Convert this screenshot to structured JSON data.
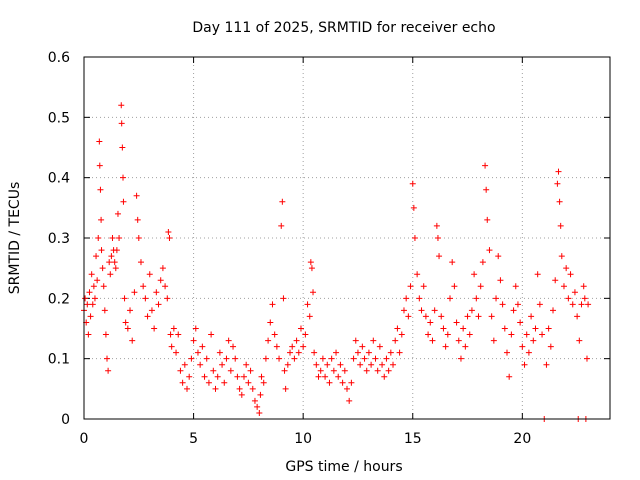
{
  "chart_data": {
    "type": "scatter",
    "title": "Day 111 of 2025, SRMTID for receiver echo",
    "xlabel": "GPS time / hours",
    "ylabel": "SRMTID / TECUs",
    "xlim": [
      0,
      24
    ],
    "ylim": [
      0,
      0.6
    ],
    "xticks": [
      "0",
      "5",
      "10",
      "15",
      "20"
    ],
    "yticks": [
      "0",
      "0.1",
      "0.2",
      "0.3",
      "0.4",
      "0.5",
      "0.6"
    ],
    "grid": true,
    "marker": "+",
    "colors": {
      "points": "#ff0000",
      "grid": "#a0a0a0",
      "axes": "#000000"
    },
    "series": [
      {
        "name": "SRMTID",
        "points": [
          [
            0.0,
            0.18
          ],
          [
            0.05,
            0.2
          ],
          [
            0.1,
            0.16
          ],
          [
            0.15,
            0.19
          ],
          [
            0.2,
            0.14
          ],
          [
            0.25,
            0.21
          ],
          [
            0.3,
            0.17
          ],
          [
            0.35,
            0.24
          ],
          [
            0.4,
            0.19
          ],
          [
            0.45,
            0.22
          ],
          [
            0.5,
            0.2
          ],
          [
            0.55,
            0.27
          ],
          [
            0.6,
            0.23
          ],
          [
            0.65,
            0.3
          ],
          [
            0.7,
            0.46
          ],
          [
            0.72,
            0.42
          ],
          [
            0.75,
            0.38
          ],
          [
            0.78,
            0.33
          ],
          [
            0.8,
            0.28
          ],
          [
            0.85,
            0.25
          ],
          [
            0.9,
            0.22
          ],
          [
            0.95,
            0.18
          ],
          [
            1.0,
            0.14
          ],
          [
            1.05,
            0.1
          ],
          [
            1.1,
            0.08
          ],
          [
            1.15,
            0.26
          ],
          [
            1.2,
            0.24
          ],
          [
            1.25,
            0.27
          ],
          [
            1.3,
            0.3
          ],
          [
            1.35,
            0.28
          ],
          [
            1.4,
            0.26
          ],
          [
            1.45,
            0.25
          ],
          [
            1.5,
            0.28
          ],
          [
            1.55,
            0.34
          ],
          [
            1.6,
            0.3
          ],
          [
            1.7,
            0.52
          ],
          [
            1.72,
            0.49
          ],
          [
            1.75,
            0.45
          ],
          [
            1.78,
            0.4
          ],
          [
            1.8,
            0.36
          ],
          [
            1.85,
            0.2
          ],
          [
            1.9,
            0.16
          ],
          [
            2.0,
            0.15
          ],
          [
            2.1,
            0.18
          ],
          [
            2.2,
            0.13
          ],
          [
            2.3,
            0.21
          ],
          [
            2.4,
            0.37
          ],
          [
            2.45,
            0.33
          ],
          [
            2.5,
            0.3
          ],
          [
            2.6,
            0.26
          ],
          [
            2.7,
            0.22
          ],
          [
            2.8,
            0.2
          ],
          [
            2.9,
            0.17
          ],
          [
            3.0,
            0.24
          ],
          [
            3.1,
            0.18
          ],
          [
            3.2,
            0.15
          ],
          [
            3.3,
            0.21
          ],
          [
            3.4,
            0.19
          ],
          [
            3.5,
            0.23
          ],
          [
            3.6,
            0.25
          ],
          [
            3.7,
            0.22
          ],
          [
            3.8,
            0.2
          ],
          [
            3.85,
            0.31
          ],
          [
            3.9,
            0.3
          ],
          [
            3.95,
            0.14
          ],
          [
            4.0,
            0.12
          ],
          [
            4.1,
            0.15
          ],
          [
            4.2,
            0.11
          ],
          [
            4.3,
            0.14
          ],
          [
            4.4,
            0.08
          ],
          [
            4.5,
            0.06
          ],
          [
            4.6,
            0.09
          ],
          [
            4.7,
            0.05
          ],
          [
            4.8,
            0.07
          ],
          [
            4.9,
            0.1
          ],
          [
            5.0,
            0.13
          ],
          [
            5.1,
            0.15
          ],
          [
            5.2,
            0.11
          ],
          [
            5.3,
            0.09
          ],
          [
            5.4,
            0.12
          ],
          [
            5.5,
            0.07
          ],
          [
            5.6,
            0.1
          ],
          [
            5.7,
            0.06
          ],
          [
            5.8,
            0.14
          ],
          [
            5.9,
            0.08
          ],
          [
            6.0,
            0.05
          ],
          [
            6.1,
            0.07
          ],
          [
            6.2,
            0.11
          ],
          [
            6.3,
            0.09
          ],
          [
            6.4,
            0.06
          ],
          [
            6.5,
            0.1
          ],
          [
            6.6,
            0.13
          ],
          [
            6.7,
            0.08
          ],
          [
            6.8,
            0.12
          ],
          [
            6.9,
            0.1
          ],
          [
            7.0,
            0.07
          ],
          [
            7.1,
            0.05
          ],
          [
            7.2,
            0.04
          ],
          [
            7.3,
            0.07
          ],
          [
            7.4,
            0.09
          ],
          [
            7.5,
            0.06
          ],
          [
            7.6,
            0.08
          ],
          [
            7.7,
            0.05
          ],
          [
            7.8,
            0.03
          ],
          [
            7.9,
            0.02
          ],
          [
            8.0,
            0.01
          ],
          [
            8.05,
            0.04
          ],
          [
            8.1,
            0.07
          ],
          [
            8.2,
            0.06
          ],
          [
            8.3,
            0.1
          ],
          [
            8.4,
            0.13
          ],
          [
            8.5,
            0.16
          ],
          [
            8.6,
            0.19
          ],
          [
            8.7,
            0.14
          ],
          [
            8.8,
            0.12
          ],
          [
            8.9,
            0.1
          ],
          [
            9.0,
            0.32
          ],
          [
            9.05,
            0.36
          ],
          [
            9.1,
            0.2
          ],
          [
            9.15,
            0.08
          ],
          [
            9.2,
            0.05
          ],
          [
            9.3,
            0.09
          ],
          [
            9.4,
            0.11
          ],
          [
            9.5,
            0.12
          ],
          [
            9.6,
            0.1
          ],
          [
            9.7,
            0.13
          ],
          [
            9.8,
            0.11
          ],
          [
            9.9,
            0.15
          ],
          [
            10.0,
            0.12
          ],
          [
            10.1,
            0.14
          ],
          [
            10.2,
            0.19
          ],
          [
            10.3,
            0.17
          ],
          [
            10.35,
            0.26
          ],
          [
            10.4,
            0.25
          ],
          [
            10.45,
            0.21
          ],
          [
            10.5,
            0.11
          ],
          [
            10.6,
            0.09
          ],
          [
            10.7,
            0.07
          ],
          [
            10.8,
            0.08
          ],
          [
            10.9,
            0.1
          ],
          [
            11.0,
            0.07
          ],
          [
            11.1,
            0.09
          ],
          [
            11.2,
            0.06
          ],
          [
            11.3,
            0.1
          ],
          [
            11.4,
            0.08
          ],
          [
            11.5,
            0.11
          ],
          [
            11.6,
            0.07
          ],
          [
            11.7,
            0.09
          ],
          [
            11.8,
            0.06
          ],
          [
            11.9,
            0.08
          ],
          [
            12.0,
            0.05
          ],
          [
            12.1,
            0.03
          ],
          [
            12.2,
            0.06
          ],
          [
            12.3,
            0.1
          ],
          [
            12.4,
            0.13
          ],
          [
            12.5,
            0.11
          ],
          [
            12.6,
            0.09
          ],
          [
            12.7,
            0.12
          ],
          [
            12.8,
            0.1
          ],
          [
            12.9,
            0.08
          ],
          [
            13.0,
            0.11
          ],
          [
            13.1,
            0.09
          ],
          [
            13.2,
            0.13
          ],
          [
            13.3,
            0.1
          ],
          [
            13.4,
            0.08
          ],
          [
            13.5,
            0.12
          ],
          [
            13.6,
            0.09
          ],
          [
            13.7,
            0.07
          ],
          [
            13.8,
            0.1
          ],
          [
            13.9,
            0.08
          ],
          [
            14.0,
            0.11
          ],
          [
            14.1,
            0.09
          ],
          [
            14.2,
            0.13
          ],
          [
            14.3,
            0.15
          ],
          [
            14.4,
            0.11
          ],
          [
            14.5,
            0.14
          ],
          [
            14.6,
            0.18
          ],
          [
            14.7,
            0.2
          ],
          [
            14.8,
            0.17
          ],
          [
            14.9,
            0.22
          ],
          [
            15.0,
            0.39
          ],
          [
            15.05,
            0.35
          ],
          [
            15.1,
            0.3
          ],
          [
            15.2,
            0.24
          ],
          [
            15.3,
            0.2
          ],
          [
            15.4,
            0.18
          ],
          [
            15.5,
            0.22
          ],
          [
            15.6,
            0.17
          ],
          [
            15.7,
            0.14
          ],
          [
            15.8,
            0.16
          ],
          [
            15.9,
            0.13
          ],
          [
            16.0,
            0.18
          ],
          [
            16.1,
            0.32
          ],
          [
            16.15,
            0.3
          ],
          [
            16.2,
            0.27
          ],
          [
            16.3,
            0.17
          ],
          [
            16.4,
            0.15
          ],
          [
            16.5,
            0.12
          ],
          [
            16.6,
            0.14
          ],
          [
            16.7,
            0.2
          ],
          [
            16.8,
            0.26
          ],
          [
            16.9,
            0.22
          ],
          [
            17.0,
            0.16
          ],
          [
            17.1,
            0.13
          ],
          [
            17.2,
            0.1
          ],
          [
            17.3,
            0.15
          ],
          [
            17.4,
            0.12
          ],
          [
            17.5,
            0.17
          ],
          [
            17.6,
            0.14
          ],
          [
            17.7,
            0.18
          ],
          [
            17.8,
            0.24
          ],
          [
            17.9,
            0.2
          ],
          [
            18.0,
            0.17
          ],
          [
            18.1,
            0.22
          ],
          [
            18.2,
            0.26
          ],
          [
            18.3,
            0.42
          ],
          [
            18.35,
            0.38
          ],
          [
            18.4,
            0.33
          ],
          [
            18.5,
            0.28
          ],
          [
            18.6,
            0.17
          ],
          [
            18.7,
            0.13
          ],
          [
            18.8,
            0.2
          ],
          [
            18.9,
            0.27
          ],
          [
            19.0,
            0.23
          ],
          [
            19.1,
            0.19
          ],
          [
            19.2,
            0.15
          ],
          [
            19.3,
            0.11
          ],
          [
            19.4,
            0.07
          ],
          [
            19.5,
            0.14
          ],
          [
            19.6,
            0.18
          ],
          [
            19.7,
            0.22
          ],
          [
            19.8,
            0.19
          ],
          [
            19.9,
            0.16
          ],
          [
            20.0,
            0.12
          ],
          [
            20.1,
            0.09
          ],
          [
            20.2,
            0.14
          ],
          [
            20.3,
            0.11
          ],
          [
            20.4,
            0.17
          ],
          [
            20.5,
            0.13
          ],
          [
            20.6,
            0.15
          ],
          [
            20.7,
            0.24
          ],
          [
            20.8,
            0.19
          ],
          [
            20.9,
            0.14
          ],
          [
            21.0,
            0.0
          ],
          [
            21.1,
            0.09
          ],
          [
            21.2,
            0.15
          ],
          [
            21.3,
            0.12
          ],
          [
            21.4,
            0.18
          ],
          [
            21.5,
            0.23
          ],
          [
            21.6,
            0.39
          ],
          [
            21.65,
            0.41
          ],
          [
            21.7,
            0.36
          ],
          [
            21.75,
            0.32
          ],
          [
            21.8,
            0.27
          ],
          [
            21.9,
            0.22
          ],
          [
            22.0,
            0.25
          ],
          [
            22.1,
            0.2
          ],
          [
            22.2,
            0.24
          ],
          [
            22.3,
            0.19
          ],
          [
            22.4,
            0.21
          ],
          [
            22.5,
            0.17
          ],
          [
            22.55,
            0.0
          ],
          [
            22.6,
            0.13
          ],
          [
            22.7,
            0.19
          ],
          [
            22.8,
            0.22
          ],
          [
            22.85,
            0.2
          ],
          [
            22.9,
            0.0
          ],
          [
            22.95,
            0.1
          ],
          [
            23.0,
            0.19
          ]
        ]
      }
    ]
  }
}
